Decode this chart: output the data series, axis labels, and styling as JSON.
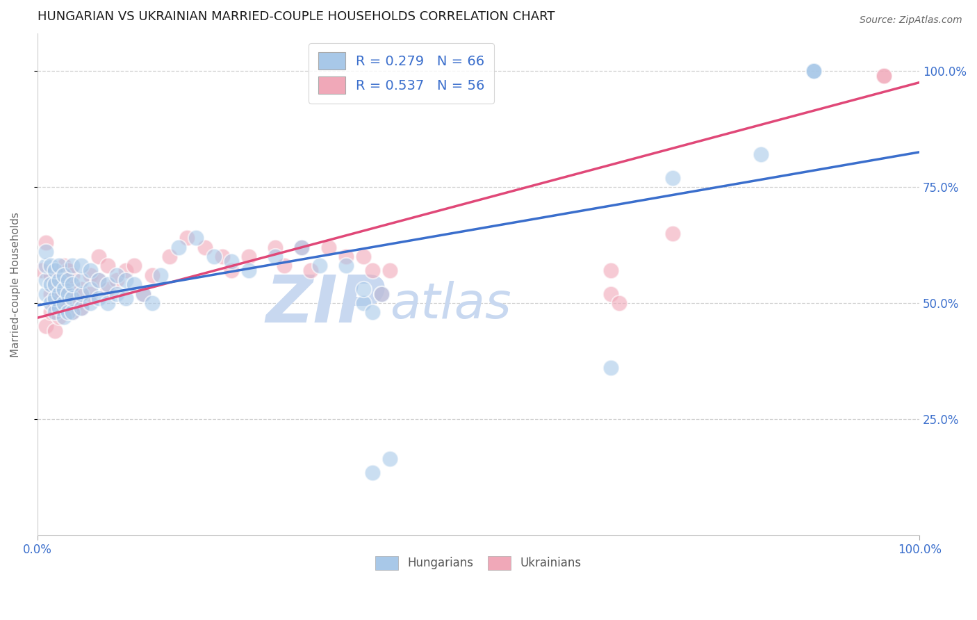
{
  "title": "HUNGARIAN VS UKRAINIAN MARRIED-COUPLE HOUSEHOLDS CORRELATION CHART",
  "source": "Source: ZipAtlas.com",
  "ylabel": "Married-couple Households",
  "xlim": [
    0.0,
    1.0
  ],
  "ylim": [
    0.0,
    1.08
  ],
  "yticks": [
    0.25,
    0.5,
    0.75,
    1.0
  ],
  "ytick_labels": [
    "25.0%",
    "50.0%",
    "75.0%",
    "100.0%"
  ],
  "xtick_pos": [
    0.0,
    1.0
  ],
  "xtick_labels": [
    "0.0%",
    "100.0%"
  ],
  "blue_R": 0.279,
  "blue_N": 66,
  "pink_R": 0.537,
  "pink_N": 56,
  "blue_face": "#a8c8e8",
  "pink_face": "#f0a8b8",
  "blue_line_color": "#3a6ecc",
  "pink_line_color": "#e04878",
  "tick_color": "#3a6ecc",
  "grid_color": "#d0d0d0",
  "watermark_color": "#d5e5f5",
  "blue_line_y_start": 0.495,
  "blue_line_y_end": 0.825,
  "pink_line_y_start": 0.468,
  "pink_line_y_end": 0.975,
  "blue_scatter_x": [
    0.01,
    0.01,
    0.01,
    0.01,
    0.015,
    0.015,
    0.015,
    0.02,
    0.02,
    0.02,
    0.02,
    0.025,
    0.025,
    0.025,
    0.025,
    0.03,
    0.03,
    0.03,
    0.03,
    0.035,
    0.035,
    0.035,
    0.04,
    0.04,
    0.04,
    0.04,
    0.05,
    0.05,
    0.05,
    0.05,
    0.06,
    0.06,
    0.06,
    0.07,
    0.07,
    0.08,
    0.08,
    0.09,
    0.09,
    0.1,
    0.1,
    0.11,
    0.12,
    0.13,
    0.14,
    0.16,
    0.18,
    0.2,
    0.22,
    0.24,
    0.27,
    0.3,
    0.32,
    0.35,
    0.37,
    0.37,
    0.38,
    0.39,
    0.65,
    0.72,
    0.82,
    0.88,
    0.88,
    0.88,
    0.38,
    0.4
  ],
  "blue_scatter_y": [
    0.52,
    0.55,
    0.58,
    0.61,
    0.5,
    0.54,
    0.58,
    0.48,
    0.51,
    0.54,
    0.57,
    0.49,
    0.52,
    0.55,
    0.58,
    0.47,
    0.5,
    0.53,
    0.56,
    0.48,
    0.52,
    0.55,
    0.48,
    0.51,
    0.54,
    0.58,
    0.49,
    0.52,
    0.55,
    0.58,
    0.5,
    0.53,
    0.57,
    0.51,
    0.55,
    0.5,
    0.54,
    0.52,
    0.56,
    0.51,
    0.55,
    0.54,
    0.52,
    0.5,
    0.56,
    0.62,
    0.64,
    0.6,
    0.59,
    0.57,
    0.6,
    0.62,
    0.58,
    0.58,
    0.5,
    0.53,
    0.48,
    0.52,
    0.36,
    0.77,
    0.82,
    1.0,
    1.0,
    1.0,
    0.135,
    0.165
  ],
  "pink_scatter_x": [
    0.005,
    0.01,
    0.01,
    0.015,
    0.015,
    0.015,
    0.02,
    0.02,
    0.02,
    0.025,
    0.025,
    0.025,
    0.03,
    0.03,
    0.03,
    0.035,
    0.035,
    0.04,
    0.04,
    0.04,
    0.045,
    0.05,
    0.05,
    0.06,
    0.06,
    0.07,
    0.07,
    0.08,
    0.08,
    0.09,
    0.1,
    0.11,
    0.12,
    0.13,
    0.15,
    0.17,
    0.19,
    0.21,
    0.22,
    0.24,
    0.27,
    0.28,
    0.3,
    0.31,
    0.33,
    0.35,
    0.37,
    0.38,
    0.39,
    0.4,
    0.65,
    0.65,
    0.66,
    0.72,
    0.96,
    0.96
  ],
  "pink_scatter_y": [
    0.57,
    0.45,
    0.63,
    0.48,
    0.52,
    0.56,
    0.44,
    0.49,
    0.54,
    0.47,
    0.52,
    0.56,
    0.5,
    0.54,
    0.58,
    0.53,
    0.57,
    0.48,
    0.52,
    0.56,
    0.5,
    0.49,
    0.53,
    0.52,
    0.56,
    0.55,
    0.6,
    0.53,
    0.58,
    0.55,
    0.57,
    0.58,
    0.52,
    0.56,
    0.6,
    0.64,
    0.62,
    0.6,
    0.57,
    0.6,
    0.62,
    0.58,
    0.62,
    0.57,
    0.62,
    0.6,
    0.6,
    0.57,
    0.52,
    0.57,
    0.52,
    0.57,
    0.5,
    0.65,
    0.99,
    0.99
  ]
}
